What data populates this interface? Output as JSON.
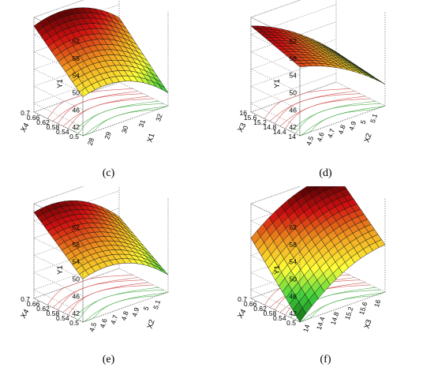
{
  "colors": {
    "low": "#0e6b0e",
    "mid_green": "#3fd23f",
    "yellow": "#ffff3a",
    "orange": "#f0a020",
    "red": "#d01010",
    "dark": "#3a0000",
    "contour_warm": "#d25a5a",
    "contour_cool": "#55b055"
  },
  "chart_data": [
    {
      "type": "surface",
      "caption": "(c)",
      "zlabel": "Y1",
      "xlabel": "X1",
      "ylabel": "X4",
      "x_ticks": [
        "28",
        "29",
        "30",
        "31",
        "32"
      ],
      "y_ticks": [
        "0.5",
        "0.54",
        "0.58",
        "0.62",
        "0.66",
        "0.7"
      ],
      "z_ticks": [
        "42",
        "46",
        "50",
        "54",
        "58",
        "62"
      ],
      "xlim": [
        27.5,
        32.5
      ],
      "ylim": [
        0.5,
        0.7
      ],
      "zlim": [
        40,
        62
      ],
      "corners": {
        "xmin_ymin": 49,
        "xmax_ymin": 43,
        "xmin_ymax": 60,
        "xmax_ymax": 55
      },
      "curvature": 4
    },
    {
      "type": "surface",
      "caption": "(d)",
      "zlabel": "Y1",
      "xlabel": "X2",
      "ylabel": "X3",
      "x_ticks": [
        "4.5",
        "4.6",
        "4.7",
        "4.8",
        "4.9",
        "5",
        "5.1"
      ],
      "y_ticks": [
        "14",
        "14.4",
        "14.8",
        "15.2",
        "15.6",
        "16"
      ],
      "z_ticks": [
        "42",
        "46",
        "50",
        "54",
        "58",
        "62"
      ],
      "xlim": [
        4.4,
        5.2
      ],
      "ylim": [
        14,
        16
      ],
      "zlim": [
        40,
        62
      ],
      "corners": {
        "xmin_ymin": 56,
        "xmax_ymin": 45,
        "xmin_ymax": 60,
        "xmax_ymax": 47
      },
      "curvature": 2
    },
    {
      "type": "surface",
      "caption": "(e)",
      "zlabel": "Y1",
      "xlabel": "X2",
      "ylabel": "X4",
      "x_ticks": [
        "4.5",
        "4.6",
        "4.7",
        "4.8",
        "4.9",
        "5",
        "5.1"
      ],
      "y_ticks": [
        "0.5",
        "0.54",
        "0.58",
        "0.62",
        "0.66",
        "0.7"
      ],
      "z_ticks": [
        "42",
        "46",
        "50",
        "54",
        "58",
        "62"
      ],
      "xlim": [
        4.4,
        5.2
      ],
      "ylim": [
        0.5,
        0.7
      ],
      "zlim": [
        40,
        62
      ],
      "corners": {
        "xmin_ymin": 50,
        "xmax_ymin": 44,
        "xmin_ymax": 60,
        "xmax_ymax": 52
      },
      "curvature": 4
    },
    {
      "type": "surface",
      "caption": "(f)",
      "zlabel": "Y1",
      "xlabel": "X3",
      "ylabel": "X4",
      "x_ticks": [
        "14",
        "14.4",
        "14.8",
        "15.2",
        "15.6",
        "16"
      ],
      "y_ticks": [
        "0.5",
        "0.54",
        "0.58",
        "0.62",
        "0.66",
        "0.7"
      ],
      "z_ticks": [
        "42",
        "46",
        "50",
        "54",
        "58",
        "62"
      ],
      "xlim": [
        13.8,
        16.2
      ],
      "ylim": [
        0.5,
        0.7
      ],
      "zlim": [
        40,
        62
      ],
      "corners": {
        "xmin_ymin": 40,
        "xmax_ymin": 51,
        "xmin_ymax": 54,
        "xmax_ymax": 62
      },
      "curvature": 3
    }
  ]
}
